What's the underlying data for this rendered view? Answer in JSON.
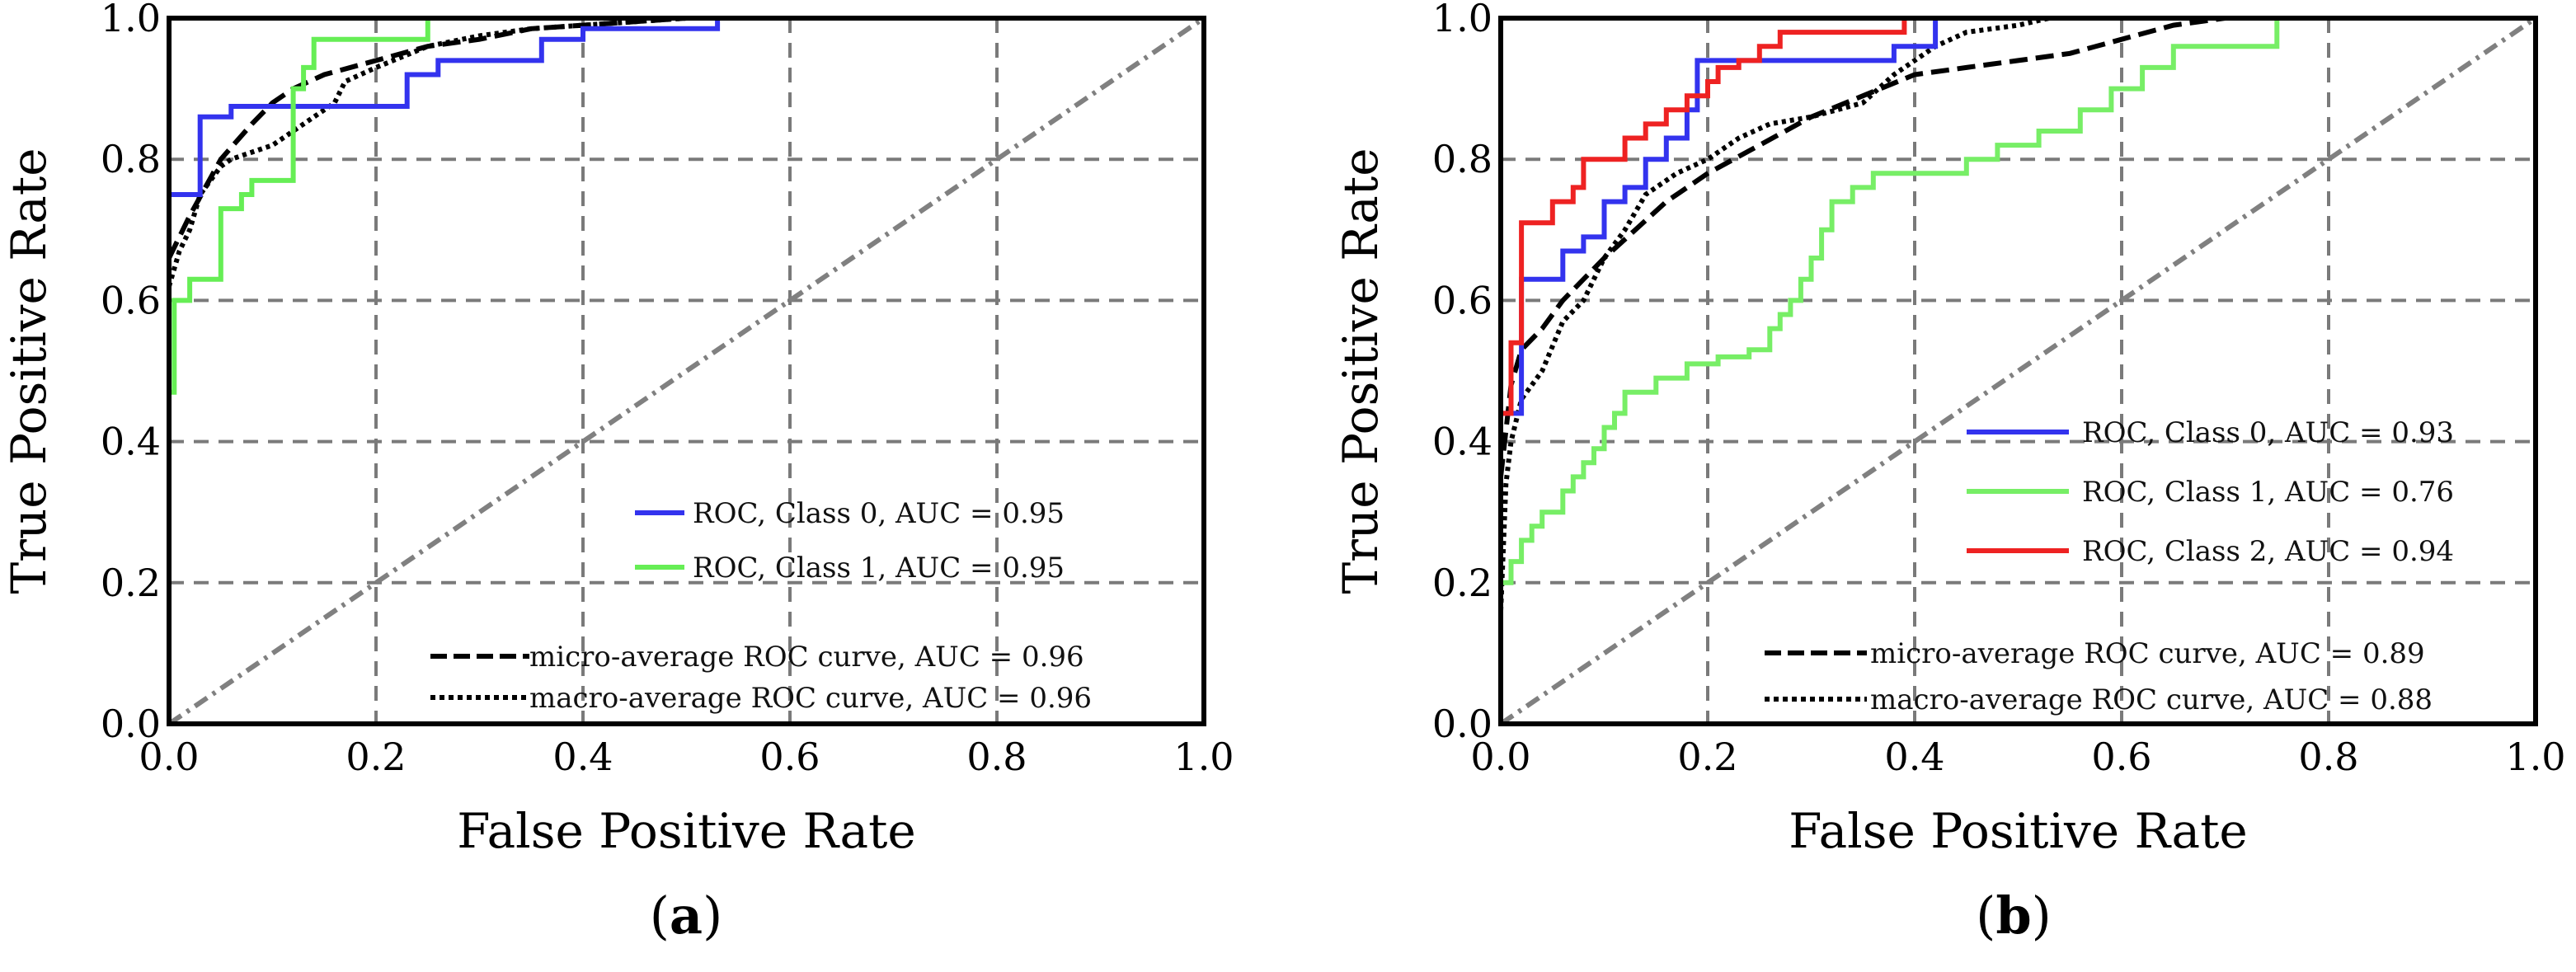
{
  "chart_data": [
    {
      "type": "line",
      "panel_label": "a",
      "xlabel": "False Positive Rate",
      "ylabel": "True Positive Rate",
      "xlim": [
        0.0,
        1.0
      ],
      "ylim": [
        0.0,
        1.0
      ],
      "xticks": [
        "0.0",
        "0.2",
        "0.4",
        "0.6",
        "0.8",
        "1.0"
      ],
      "yticks": [
        "0.0",
        "0.2",
        "0.4",
        "0.6",
        "0.8",
        "1.0"
      ],
      "grid": true,
      "legend_position": "lower-right",
      "series": [
        {
          "name": "ROC, Class 0, AUC = 0.95",
          "color": "#3333ee",
          "style": "solid",
          "x": [
            0.0,
            0.0,
            0.015,
            0.03,
            0.03,
            0.06,
            0.06,
            0.23,
            0.23,
            0.26,
            0.26,
            0.36,
            0.36,
            0.4,
            0.4,
            0.53,
            0.53
          ],
          "y": [
            0.0,
            0.75,
            0.75,
            0.75,
            0.86,
            0.86,
            0.875,
            0.875,
            0.92,
            0.92,
            0.94,
            0.94,
            0.97,
            0.97,
            0.985,
            0.985,
            1.0
          ]
        },
        {
          "name": "ROC, Class 1, AUC = 0.95",
          "color": "#66ee55",
          "style": "solid",
          "x": [
            0.0,
            0.0,
            0.005,
            0.005,
            0.02,
            0.02,
            0.05,
            0.05,
            0.07,
            0.07,
            0.08,
            0.08,
            0.12,
            0.12,
            0.13,
            0.13,
            0.14,
            0.14,
            0.25,
            0.25,
            0.4
          ],
          "y": [
            0.0,
            0.47,
            0.47,
            0.6,
            0.6,
            0.63,
            0.63,
            0.73,
            0.73,
            0.75,
            0.75,
            0.77,
            0.77,
            0.9,
            0.9,
            0.93,
            0.93,
            0.97,
            0.97,
            1.0,
            1.0
          ]
        },
        {
          "name": "micro-average ROC curve, AUC = 0.96",
          "color": "#000000",
          "style": "dashed",
          "x": [
            0.0,
            0.02,
            0.05,
            0.08,
            0.1,
            0.12,
            0.15,
            0.2,
            0.25,
            0.3,
            0.35,
            0.4,
            0.5,
            0.53
          ],
          "y": [
            0.66,
            0.72,
            0.8,
            0.85,
            0.88,
            0.9,
            0.92,
            0.94,
            0.96,
            0.97,
            0.985,
            0.99,
            1.0,
            1.0
          ]
        },
        {
          "name": "macro-average ROC curve, AUC = 0.96",
          "color": "#000000",
          "style": "dotted",
          "x": [
            0.0,
            0.01,
            0.02,
            0.03,
            0.05,
            0.06,
            0.08,
            0.1,
            0.12,
            0.14,
            0.16,
            0.17,
            0.2,
            0.25,
            0.3,
            0.35,
            0.4,
            0.5
          ],
          "y": [
            0.62,
            0.67,
            0.7,
            0.75,
            0.79,
            0.8,
            0.81,
            0.82,
            0.84,
            0.86,
            0.88,
            0.91,
            0.93,
            0.96,
            0.975,
            0.985,
            0.99,
            1.0
          ]
        },
        {
          "name": "chance",
          "color": "#808080",
          "style": "dashdot",
          "x": [
            0.0,
            1.0
          ],
          "y": [
            0.0,
            1.0
          ]
        }
      ]
    },
    {
      "type": "line",
      "panel_label": "b",
      "xlabel": "False Positive Rate",
      "ylabel": "True Positive Rate",
      "xlim": [
        0.0,
        1.0
      ],
      "ylim": [
        0.0,
        1.0
      ],
      "xticks": [
        "0.0",
        "0.2",
        "0.4",
        "0.6",
        "0.8",
        "1.0"
      ],
      "yticks": [
        "0.0",
        "0.2",
        "0.4",
        "0.6",
        "0.8",
        "1.0"
      ],
      "grid": true,
      "legend_position": "lower-right",
      "series": [
        {
          "name": "ROC, Class 0, AUC = 0.93",
          "color": "#3333ee",
          "style": "solid",
          "x": [
            0.0,
            0.0,
            0.02,
            0.02,
            0.06,
            0.06,
            0.08,
            0.08,
            0.1,
            0.1,
            0.12,
            0.12,
            0.14,
            0.14,
            0.16,
            0.16,
            0.18,
            0.18,
            0.19,
            0.19,
            0.38,
            0.38,
            0.42,
            0.42
          ],
          "y": [
            0.0,
            0.44,
            0.44,
            0.63,
            0.63,
            0.67,
            0.67,
            0.69,
            0.69,
            0.74,
            0.74,
            0.76,
            0.76,
            0.8,
            0.8,
            0.83,
            0.83,
            0.87,
            0.87,
            0.94,
            0.94,
            0.96,
            0.96,
            1.0
          ]
        },
        {
          "name": "ROC, Class 1, AUC = 0.76",
          "color": "#77ee66",
          "style": "solid",
          "x": [
            0.0,
            0.0,
            0.01,
            0.01,
            0.02,
            0.02,
            0.03,
            0.03,
            0.04,
            0.04,
            0.06,
            0.06,
            0.07,
            0.07,
            0.08,
            0.08,
            0.09,
            0.09,
            0.1,
            0.1,
            0.11,
            0.11,
            0.12,
            0.12,
            0.15,
            0.15,
            0.18,
            0.18,
            0.21,
            0.21,
            0.24,
            0.24,
            0.26,
            0.26,
            0.27,
            0.27,
            0.28,
            0.28,
            0.29,
            0.29,
            0.3,
            0.3,
            0.31,
            0.31,
            0.32,
            0.32,
            0.34,
            0.34,
            0.36,
            0.36,
            0.38,
            0.38,
            0.45,
            0.45,
            0.48,
            0.48,
            0.52,
            0.52,
            0.56,
            0.56,
            0.59,
            0.59,
            0.62,
            0.62,
            0.65,
            0.65,
            0.75,
            0.75
          ],
          "y": [
            0.0,
            0.2,
            0.2,
            0.23,
            0.23,
            0.26,
            0.26,
            0.28,
            0.28,
            0.3,
            0.3,
            0.33,
            0.33,
            0.35,
            0.35,
            0.37,
            0.37,
            0.39,
            0.39,
            0.42,
            0.42,
            0.44,
            0.44,
            0.47,
            0.47,
            0.49,
            0.49,
            0.51,
            0.51,
            0.52,
            0.52,
            0.53,
            0.53,
            0.56,
            0.56,
            0.58,
            0.58,
            0.6,
            0.6,
            0.63,
            0.63,
            0.66,
            0.66,
            0.7,
            0.7,
            0.74,
            0.74,
            0.76,
            0.76,
            0.78,
            0.78,
            0.78,
            0.78,
            0.8,
            0.8,
            0.82,
            0.82,
            0.84,
            0.84,
            0.87,
            0.87,
            0.9,
            0.9,
            0.93,
            0.93,
            0.96,
            0.96,
            1.0
          ]
        },
        {
          "name": "ROC, Class 2, AUC = 0.94",
          "color": "#ee2222",
          "style": "solid",
          "x": [
            0.0,
            0.0,
            0.01,
            0.01,
            0.02,
            0.02,
            0.05,
            0.05,
            0.07,
            0.07,
            0.08,
            0.08,
            0.12,
            0.12,
            0.14,
            0.14,
            0.16,
            0.16,
            0.18,
            0.18,
            0.2,
            0.2,
            0.21,
            0.21,
            0.23,
            0.23,
            0.25,
            0.25,
            0.27,
            0.27,
            0.3,
            0.3,
            0.39,
            0.39,
            0.42
          ],
          "y": [
            0.0,
            0.44,
            0.44,
            0.54,
            0.54,
            0.71,
            0.71,
            0.74,
            0.74,
            0.76,
            0.76,
            0.8,
            0.8,
            0.83,
            0.83,
            0.85,
            0.85,
            0.87,
            0.87,
            0.89,
            0.89,
            0.91,
            0.91,
            0.93,
            0.93,
            0.94,
            0.94,
            0.96,
            0.96,
            0.98,
            0.98,
            0.98,
            0.98,
            1.0,
            1.0
          ]
        },
        {
          "name": "micro-average ROC curve, AUC = 0.89",
          "color": "#000000",
          "style": "dashed",
          "x": [
            0.0,
            0.01,
            0.02,
            0.04,
            0.06,
            0.08,
            0.1,
            0.13,
            0.16,
            0.2,
            0.25,
            0.3,
            0.35,
            0.4,
            0.45,
            0.5,
            0.55,
            0.6,
            0.65,
            0.7
          ],
          "y": [
            0.35,
            0.48,
            0.53,
            0.56,
            0.6,
            0.63,
            0.66,
            0.7,
            0.74,
            0.78,
            0.82,
            0.86,
            0.89,
            0.92,
            0.93,
            0.94,
            0.95,
            0.97,
            0.99,
            1.0
          ]
        },
        {
          "name": "macro-average ROC curve, AUC = 0.88",
          "color": "#000000",
          "style": "dotted",
          "x": [
            0.0,
            0.005,
            0.01,
            0.02,
            0.04,
            0.06,
            0.08,
            0.1,
            0.12,
            0.14,
            0.17,
            0.2,
            0.23,
            0.26,
            0.3,
            0.35,
            0.38,
            0.4,
            0.42,
            0.45,
            0.5,
            0.53
          ],
          "y": [
            0.16,
            0.34,
            0.4,
            0.46,
            0.5,
            0.57,
            0.6,
            0.66,
            0.7,
            0.75,
            0.78,
            0.8,
            0.83,
            0.85,
            0.86,
            0.88,
            0.92,
            0.94,
            0.96,
            0.98,
            0.99,
            1.0
          ]
        },
        {
          "name": "chance",
          "color": "#808080",
          "style": "dashdot",
          "x": [
            0.0,
            1.0
          ],
          "y": [
            0.0,
            1.0
          ]
        }
      ]
    }
  ]
}
